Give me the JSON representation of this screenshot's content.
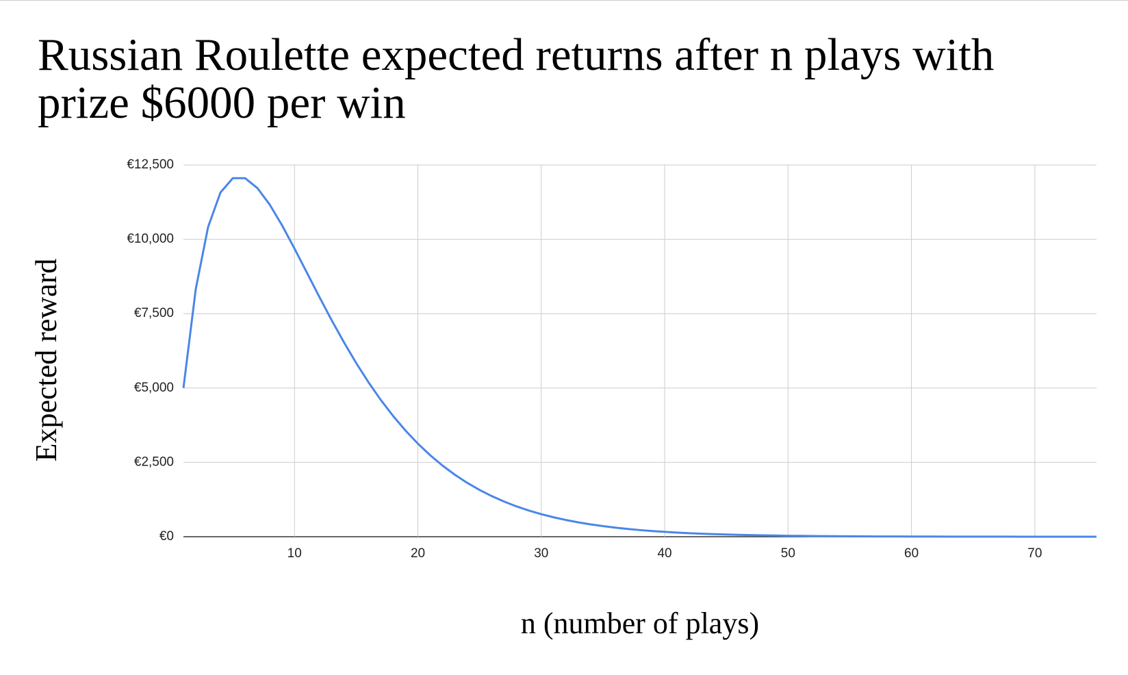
{
  "chart_data": {
    "type": "line",
    "title": "Russian Roulette expected returns after n plays with prize $6000 per win",
    "x_label": "n (number of plays)",
    "y_label": "Expected reward",
    "x": [
      1,
      2,
      3,
      4,
      5,
      6,
      7,
      8,
      9,
      10,
      11,
      12,
      13,
      14,
      15,
      16,
      17,
      18,
      19,
      20,
      21,
      22,
      23,
      24,
      25,
      26,
      27,
      28,
      29,
      30,
      31,
      32,
      33,
      34,
      35,
      36,
      37,
      38,
      39,
      40,
      41,
      42,
      43,
      44,
      45,
      46,
      47,
      48,
      49,
      50,
      51,
      52,
      53,
      54,
      55,
      56,
      57,
      58,
      59,
      60,
      61,
      62,
      63,
      64,
      65,
      66,
      67,
      68,
      69,
      70,
      71,
      72,
      73,
      74,
      75
    ],
    "series": [
      {
        "name": "Expected reward",
        "color": "#4a86e8",
        "values": [
          5000,
          8333,
          10417,
          11574,
          12056,
          12056,
          11721,
          11163,
          10466,
          9690,
          8883,
          8075,
          7290,
          6543,
          5841,
          5192,
          4597,
          4057,
          3568,
          3130,
          2739,
          2391,
          2083,
          1811,
          1572,
          1363,
          1179,
          1019,
          880,
          758,
          653,
          562,
          483,
          414,
          356,
          305,
          261,
          223,
          191,
          163,
          139,
          119,
          102,
          87,
          74,
          63,
          54,
          46,
          39,
          33,
          28,
          24,
          20,
          17,
          15,
          12,
          10,
          9,
          8,
          6,
          5,
          5,
          4,
          3,
          3,
          2,
          2,
          2,
          1,
          1,
          1,
          1,
          1,
          1,
          1
        ]
      }
    ],
    "xlim": [
      1,
      75
    ],
    "xticks": [
      10,
      20,
      30,
      40,
      50,
      60,
      70
    ],
    "ylim": [
      0,
      12500
    ],
    "yticks": [
      {
        "value": 0,
        "label": "€0"
      },
      {
        "value": 2500,
        "label": "€2,500"
      },
      {
        "value": 5000,
        "label": "€5,000"
      },
      {
        "value": 7500,
        "label": "€7,500"
      },
      {
        "value": 10000,
        "label": "€10,000"
      },
      {
        "value": 12500,
        "label": "€12,500"
      }
    ],
    "grid": true
  }
}
